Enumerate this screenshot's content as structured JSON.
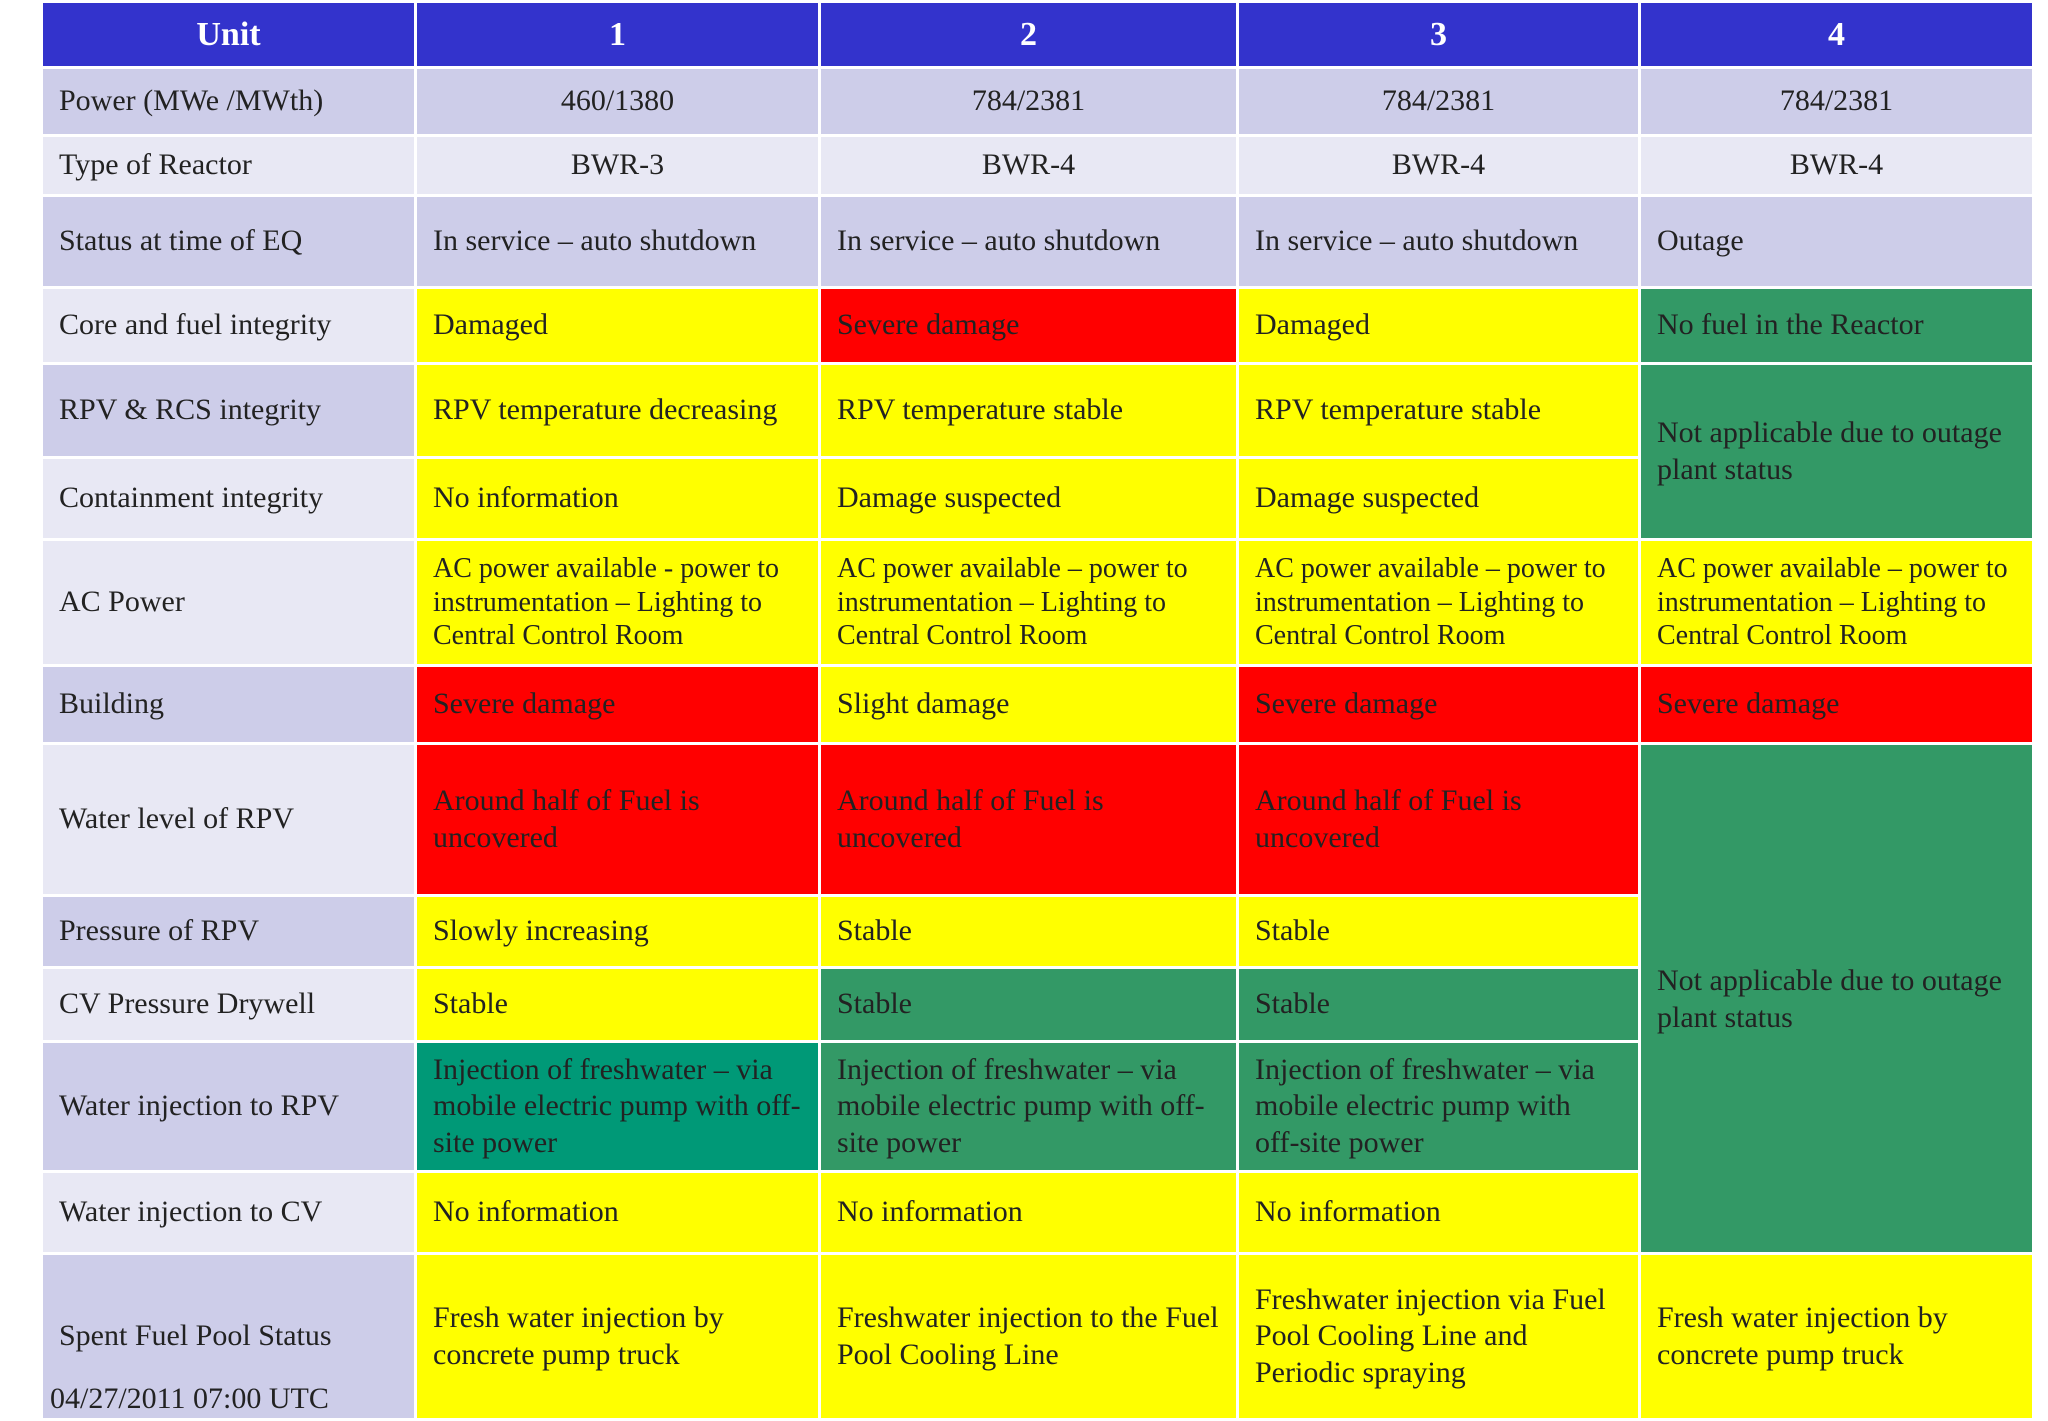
{
  "colors": {
    "header": "#3333cc",
    "label_dark": "#cdcde9",
    "label_light": "#e8e8f4",
    "yellow": "#ffff00",
    "red": "#ff0000",
    "green": "#339966",
    "teal_green": "#009977"
  },
  "header": {
    "unit": "Unit",
    "u1": "1",
    "u2": "2",
    "u3": "3",
    "u4": "4"
  },
  "rows": {
    "power": {
      "label": "Power (MWe /MWth)",
      "u1": "460/1380",
      "u2": "784/2381",
      "u3": "784/2381",
      "u4": "784/2381"
    },
    "reactor_type": {
      "label": "Type of Reactor",
      "u1": "BWR-3",
      "u2": "BWR-4",
      "u3": "BWR-4",
      "u4": "BWR-4"
    },
    "status_eq": {
      "label": "Status at time of EQ",
      "u1": "In service – auto shutdown",
      "u2": "In service – auto shutdown",
      "u3": "In service – auto shutdown",
      "u4": "Outage"
    },
    "core_fuel": {
      "label": "Core and fuel integrity",
      "u1": "Damaged",
      "u2": "Severe damage",
      "u3": "Damaged",
      "u4": "No fuel in the Reactor"
    },
    "rpv_rcs": {
      "label": "RPV & RCS integrity",
      "u1": "RPV temperature decreasing",
      "u2": "RPV temperature stable",
      "u3": "RPV temperature stable",
      "u4": "Not applicable due to outage plant status"
    },
    "containment": {
      "label": "Containment integrity",
      "u1": "No information",
      "u2": "Damage suspected",
      "u3": "Damage suspected"
    },
    "ac_power": {
      "label": "AC Power",
      "u1": "AC power available - power to instrumentation – Lighting to Central Control Room",
      "u2": "AC power available – power to instrumentation – Lighting to Central Control Room",
      "u3": "AC power available – power to instrumentation – Lighting to Central Control Room",
      "u4": "AC power available – power to instrumentation  – Lighting to Central Control Room"
    },
    "building": {
      "label": "Building",
      "u1": "Severe damage",
      "u2": "Slight damage",
      "u3": "Severe damage",
      "u4": "Severe damage"
    },
    "water_level": {
      "label": "Water level of RPV",
      "u1": "Around half of Fuel is uncovered",
      "u2": "Around half of Fuel is uncovered",
      "u3": "Around half of Fuel is uncovered",
      "u4": "Not applicable due to outage plant status"
    },
    "pressure_rpv": {
      "label": "Pressure of RPV",
      "u1": "Slowly increasing",
      "u2": "Stable",
      "u3": "Stable"
    },
    "cv_pressure": {
      "label": "CV Pressure Drywell",
      "u1": "Stable",
      "u2": "Stable",
      "u3": "Stable"
    },
    "water_inj_rpv": {
      "label": "Water injection to RPV",
      "u1": "Injection of freshwater – via mobile electric pump with off-site power",
      "u2": "Injection of freshwater – via mobile electric pump with off-site power",
      "u3": "Injection of freshwater – via mobile electric pump with off-site power"
    },
    "water_inj_cv": {
      "label": "Water injection to CV",
      "u1": "No information",
      "u2": "No information",
      "u3": "No information"
    },
    "spent_fuel": {
      "label": "Spent Fuel Pool Status",
      "u1": "Fresh water injection by concrete pump truck",
      "u2": "Freshwater injection to the Fuel Pool Cooling Line",
      "u3": "Freshwater injection via Fuel Pool Cooling Line and Periodic spraying",
      "u4": "Fresh water injection by concrete pump truck"
    }
  },
  "date_stamp": "04/27/2011 07:00 UTC"
}
